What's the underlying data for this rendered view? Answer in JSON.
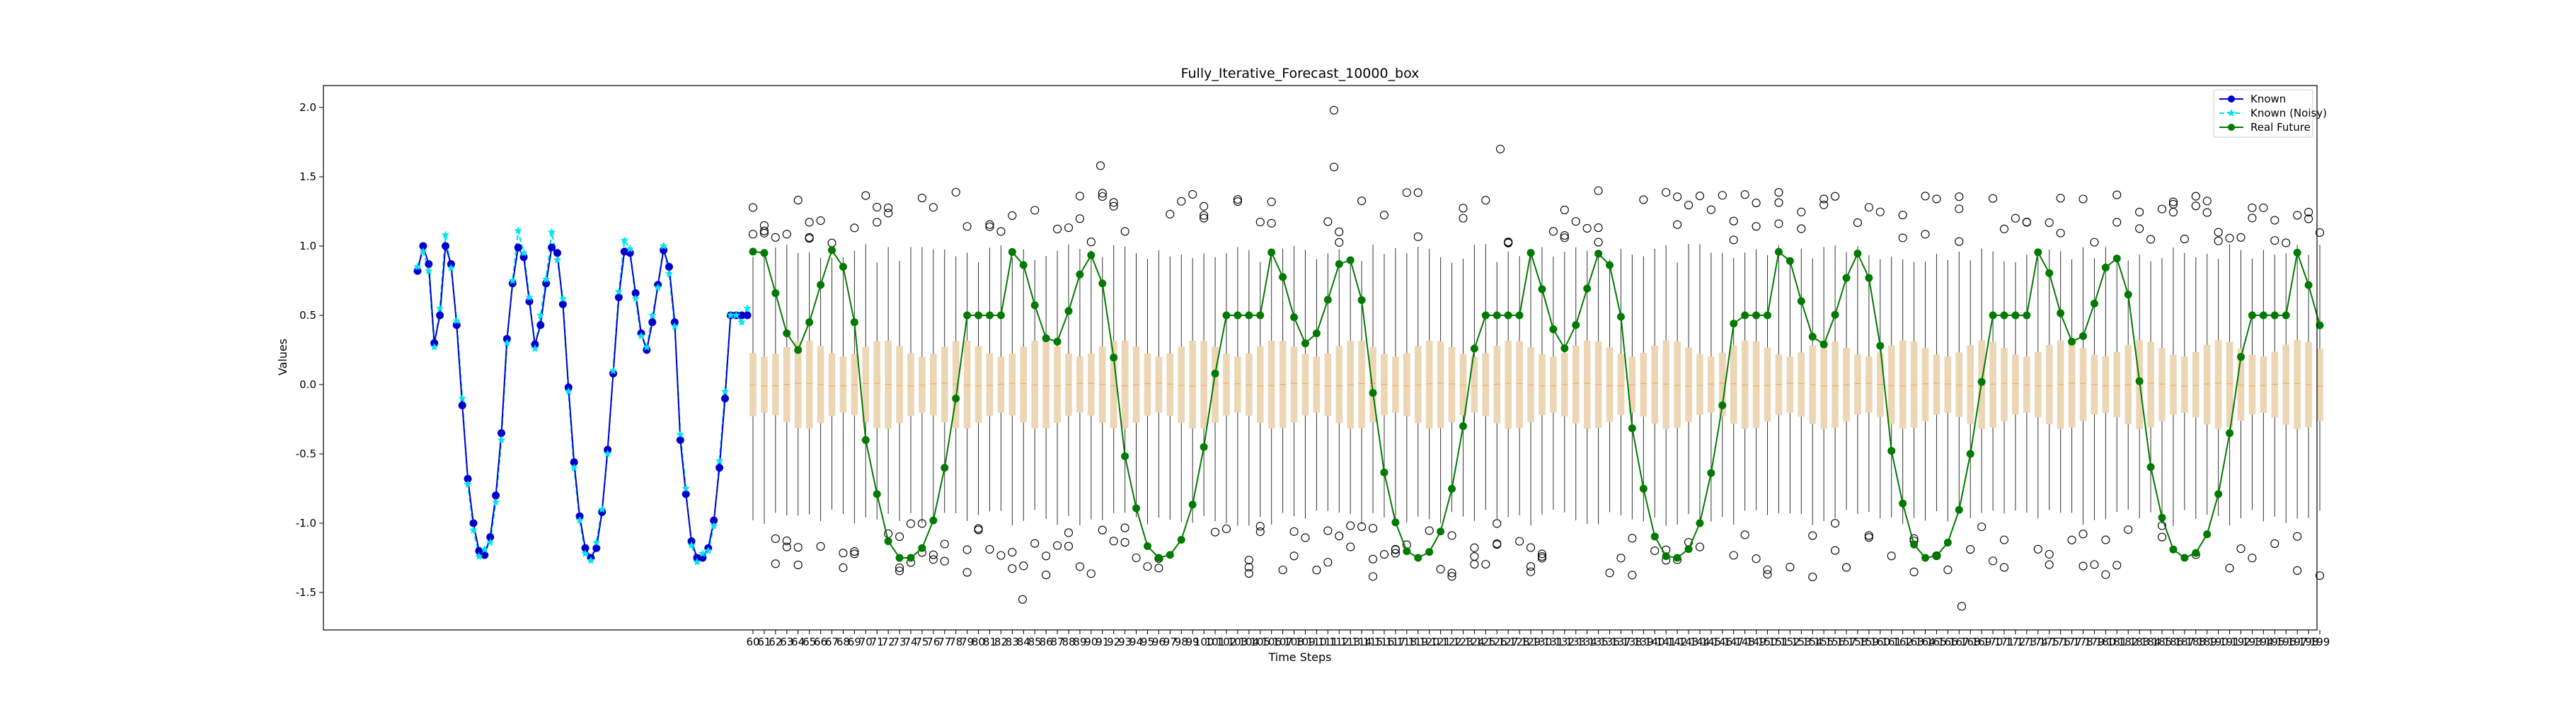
{
  "chart_data": {
    "type": "line",
    "title": "Fully_Iterative_Forecast_10000_box",
    "xlabel": "Time Steps",
    "ylabel": "Values",
    "ylim": [
      -1.75,
      2.1
    ],
    "yticks": [
      -1.5,
      -1.0,
      -0.5,
      0.0,
      0.5,
      1.0,
      1.5,
      2.0
    ],
    "grid": false,
    "legend_position": "top-right",
    "colors": {
      "known": "#0000cd",
      "known_noisy": "#00e5ee",
      "real_future": "#007a00",
      "box_fill": "#ecd6b4",
      "box_edge": "#333333"
    },
    "known_x_range": [
      0,
      59
    ],
    "future_x_range": [
      60,
      199
    ],
    "series": [
      {
        "name": "Known",
        "marker": "circle",
        "x": [
          0,
          1,
          2,
          3,
          4,
          5,
          6,
          7,
          8,
          9,
          10,
          11,
          12,
          13,
          14,
          15,
          16,
          17,
          18,
          19,
          20,
          21,
          22,
          23,
          24,
          25,
          26,
          27,
          28,
          29,
          30,
          31,
          32,
          33,
          34,
          35,
          36,
          37,
          38,
          39,
          40,
          41,
          42,
          43,
          44,
          45,
          46,
          47,
          48,
          49,
          50,
          51,
          52,
          53,
          54,
          55,
          56,
          57,
          58,
          59
        ],
        "values": [
          0.82,
          1.0,
          0.87,
          0.3,
          0.5,
          1.0,
          0.87,
          0.43,
          -0.15,
          -0.68,
          -1.0,
          -1.2,
          -1.23,
          -1.1,
          -0.8,
          -0.35,
          0.33,
          0.73,
          0.99,
          0.92,
          0.6,
          0.29,
          0.43,
          0.73,
          0.99,
          0.95,
          0.58,
          -0.02,
          -0.56,
          -0.95,
          -1.18,
          -1.25,
          -1.18,
          -0.92,
          -0.47,
          0.08,
          0.63,
          0.96,
          0.95,
          0.66,
          0.37,
          0.25,
          0.45,
          0.72,
          0.97,
          0.85,
          0.45,
          -0.4,
          -0.79,
          -1.13,
          -1.25,
          -1.25,
          -1.18,
          -0.98,
          -0.6,
          -0.1,
          0.5,
          0.5,
          0.5,
          0.5
        ]
      },
      {
        "name": "Known (Noisy)",
        "marker": "star",
        "x": [
          0,
          1,
          2,
          3,
          4,
          5,
          6,
          7,
          8,
          9,
          10,
          11,
          12,
          13,
          14,
          15,
          16,
          17,
          18,
          19,
          20,
          21,
          22,
          23,
          24,
          25,
          26,
          27,
          28,
          29,
          30,
          31,
          32,
          33,
          34,
          35,
          36,
          37,
          38,
          39,
          40,
          41,
          42,
          43,
          44,
          45,
          46,
          47,
          48,
          49,
          50,
          51,
          52,
          53,
          54,
          55,
          56,
          57,
          58,
          59
        ],
        "values": [
          0.85,
          0.96,
          0.82,
          0.27,
          0.55,
          1.08,
          0.84,
          0.46,
          -0.1,
          -0.72,
          -1.05,
          -1.24,
          -1.19,
          -1.14,
          -0.85,
          -0.4,
          0.3,
          0.75,
          1.11,
          0.95,
          0.63,
          0.26,
          0.5,
          0.76,
          1.1,
          0.9,
          0.62,
          -0.05,
          -0.6,
          -0.98,
          -1.22,
          -1.27,
          -1.14,
          -0.9,
          -0.5,
          0.1,
          0.67,
          1.04,
          0.98,
          0.62,
          0.35,
          0.27,
          0.5,
          0.7,
          1.0,
          0.8,
          0.42,
          -0.36,
          -0.75,
          -1.16,
          -1.28,
          -1.22,
          -1.2,
          -1.02,
          -0.55,
          -0.05,
          0.5,
          0.5,
          0.45,
          0.55
        ]
      },
      {
        "name": "Real Future",
        "marker": "circle",
        "x_start": 60,
        "x_end": 199,
        "period": 22.7,
        "shape": "offset sinusoid with double-hump crest, peaks near 1.0, troughs near -1.25",
        "values_description": "see samples"
      }
    ],
    "boxplots": {
      "x_start": 60,
      "x_end": 199,
      "median_approx": 0.0,
      "q1_approx": -0.3,
      "q3_approx": 0.3,
      "whisker_low_approx": -0.95,
      "whisker_high_approx": 1.0,
      "outlier_range": [
        -1.6,
        1.98
      ]
    }
  }
}
